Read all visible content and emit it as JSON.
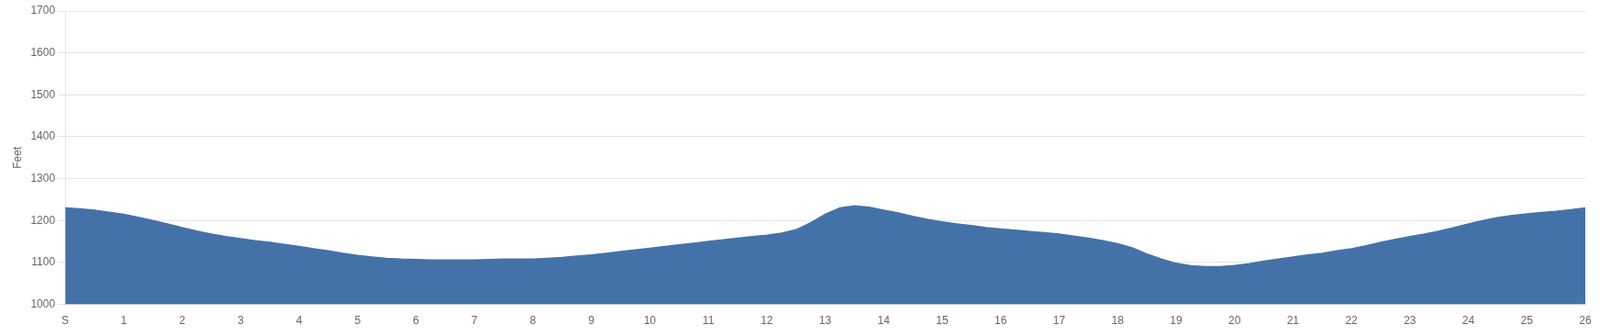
{
  "chart_data": {
    "type": "area",
    "ylabel": "Feet",
    "x": [
      0,
      0.25,
      0.5,
      0.75,
      1.0,
      1.25,
      1.5,
      1.75,
      2.0,
      2.25,
      2.5,
      2.75,
      3.0,
      3.25,
      3.5,
      3.75,
      4.0,
      4.25,
      4.5,
      4.75,
      5.0,
      5.25,
      5.5,
      5.75,
      6.0,
      6.25,
      6.5,
      6.75,
      7.0,
      7.25,
      7.5,
      7.75,
      8.0,
      8.25,
      8.5,
      8.75,
      9.0,
      9.25,
      9.5,
      9.75,
      10.0,
      10.25,
      10.5,
      10.75,
      11.0,
      11.25,
      11.5,
      11.75,
      12.0,
      12.25,
      12.5,
      12.75,
      13.0,
      13.25,
      13.5,
      13.75,
      14.0,
      14.25,
      14.5,
      14.75,
      15.0,
      15.25,
      15.5,
      15.75,
      16.0,
      16.25,
      16.5,
      16.75,
      17.0,
      17.25,
      17.5,
      17.75,
      18.0,
      18.25,
      18.5,
      18.75,
      19.0,
      19.25,
      19.5,
      19.75,
      20.0,
      20.25,
      20.5,
      20.75,
      21.0,
      21.25,
      21.5,
      21.75,
      22.0,
      22.25,
      22.5,
      22.75,
      23.0,
      23.25,
      23.5,
      23.75,
      24.0,
      24.25,
      24.5,
      24.75,
      25.0,
      25.25,
      25.5,
      25.75,
      26.0
    ],
    "values": [
      1230,
      1228,
      1225,
      1220,
      1215,
      1208,
      1200,
      1192,
      1183,
      1175,
      1168,
      1162,
      1157,
      1152,
      1148,
      1143,
      1138,
      1133,
      1128,
      1122,
      1117,
      1113,
      1110,
      1108,
      1107,
      1106,
      1106,
      1106,
      1106,
      1107,
      1108,
      1108,
      1108,
      1110,
      1112,
      1115,
      1118,
      1122,
      1126,
      1130,
      1134,
      1138,
      1142,
      1146,
      1150,
      1154,
      1158,
      1162,
      1165,
      1170,
      1178,
      1195,
      1215,
      1230,
      1235,
      1232,
      1225,
      1218,
      1210,
      1203,
      1197,
      1192,
      1188,
      1183,
      1180,
      1177,
      1174,
      1171,
      1168,
      1163,
      1158,
      1152,
      1145,
      1135,
      1120,
      1108,
      1098,
      1092,
      1090,
      1090,
      1093,
      1097,
      1103,
      1108,
      1113,
      1118,
      1122,
      1128,
      1133,
      1140,
      1148,
      1155,
      1162,
      1168,
      1175,
      1183,
      1192,
      1200,
      1207,
      1212,
      1216,
      1219,
      1222,
      1226,
      1230
    ],
    "color": "#4472a8",
    "xlim": [
      0,
      26
    ],
    "xticks": [
      {
        "value": 0,
        "label": "S"
      },
      1,
      2,
      3,
      4,
      5,
      6,
      7,
      8,
      9,
      10,
      11,
      12,
      13,
      14,
      15,
      16,
      17,
      18,
      19,
      20,
      21,
      22,
      23,
      24,
      25,
      26
    ],
    "ylim": [
      1000,
      1700
    ],
    "yticks": [
      1000,
      1100,
      1200,
      1300,
      1400,
      1500,
      1600,
      1700
    ],
    "grid": "y"
  }
}
